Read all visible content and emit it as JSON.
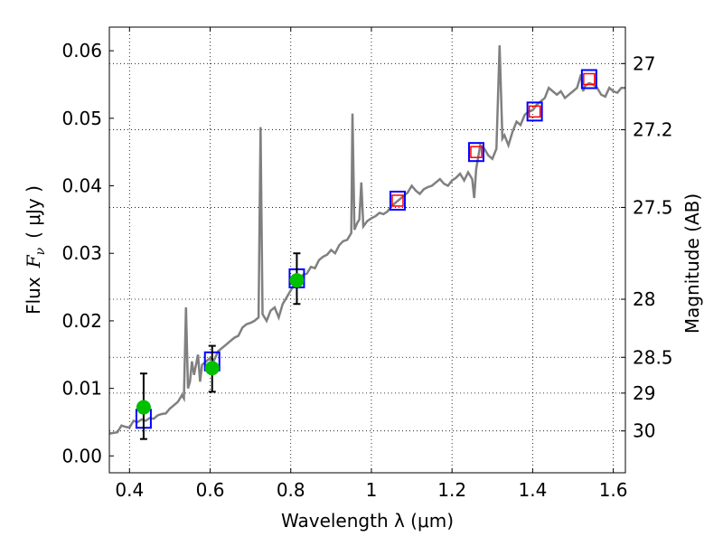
{
  "chart_data": {
    "type": "scatter",
    "xlabel": "Wavelength  λ (μm)",
    "ylabel_prefix": "Flux",
    "ylabel_symbol": "F",
    "ylabel_symbol_sub": "ν",
    "ylabel_suffix": "( μJy )",
    "ylabel_right": "Magnitude (AB)",
    "xlim": [
      0.35,
      1.63
    ],
    "ylim": [
      -0.0025,
      0.0635
    ],
    "x_ticks": [
      0.4,
      0.6,
      0.8,
      1.0,
      1.2,
      1.4,
      1.6
    ],
    "x_tick_labels": [
      "0.4",
      "0.6",
      "0.8",
      "1",
      "1.2",
      "1.4",
      "1.6"
    ],
    "y_ticks": [
      0.0,
      0.01,
      0.02,
      0.03,
      0.04,
      0.05,
      0.06
    ],
    "y_tick_labels": [
      "0.00",
      "0.01",
      "0.02",
      "0.03",
      "0.04",
      "0.05",
      "0.06"
    ],
    "right_ticks": [
      {
        "label": "27",
        "flux": 0.0581
      },
      {
        "label": "27.2",
        "flux": 0.0483
      },
      {
        "label": "27.5",
        "flux": 0.0368
      },
      {
        "label": "28",
        "flux": 0.0232
      },
      {
        "label": "28.5",
        "flux": 0.0146
      },
      {
        "label": "29",
        "flux": 0.0093
      },
      {
        "label": "30",
        "flux": 0.0037
      }
    ],
    "grid": true,
    "series": [
      {
        "kind": "spectrum",
        "color": "#808080",
        "points": [
          [
            0.35,
            0.0033
          ],
          [
            0.36,
            0.0034
          ],
          [
            0.37,
            0.0035
          ],
          [
            0.38,
            0.0045
          ],
          [
            0.39,
            0.0043
          ],
          [
            0.4,
            0.0042
          ],
          [
            0.41,
            0.0052
          ],
          [
            0.42,
            0.005
          ],
          [
            0.43,
            0.0054
          ],
          [
            0.44,
            0.0052
          ],
          [
            0.45,
            0.0056
          ],
          [
            0.46,
            0.0055
          ],
          [
            0.47,
            0.006
          ],
          [
            0.48,
            0.0062
          ],
          [
            0.49,
            0.0063
          ],
          [
            0.5,
            0.007
          ],
          [
            0.51,
            0.0075
          ],
          [
            0.52,
            0.008
          ],
          [
            0.53,
            0.009
          ],
          [
            0.535,
            0.0085
          ],
          [
            0.54,
            0.022
          ],
          [
            0.545,
            0.01
          ],
          [
            0.55,
            0.011
          ],
          [
            0.555,
            0.014
          ],
          [
            0.56,
            0.012
          ],
          [
            0.57,
            0.015
          ],
          [
            0.575,
            0.011
          ],
          [
            0.58,
            0.0135
          ],
          [
            0.59,
            0.014
          ],
          [
            0.6,
            0.0145
          ],
          [
            0.61,
            0.0142
          ],
          [
            0.62,
            0.0155
          ],
          [
            0.63,
            0.016
          ],
          [
            0.64,
            0.0165
          ],
          [
            0.65,
            0.017
          ],
          [
            0.66,
            0.0175
          ],
          [
            0.67,
            0.0178
          ],
          [
            0.68,
            0.019
          ],
          [
            0.69,
            0.0195
          ],
          [
            0.7,
            0.0197
          ],
          [
            0.71,
            0.02
          ],
          [
            0.72,
            0.0205
          ],
          [
            0.725,
            0.0487
          ],
          [
            0.73,
            0.021
          ],
          [
            0.74,
            0.02
          ],
          [
            0.75,
            0.0215
          ],
          [
            0.76,
            0.022
          ],
          [
            0.77,
            0.0205
          ],
          [
            0.78,
            0.0225
          ],
          [
            0.79,
            0.0235
          ],
          [
            0.8,
            0.0245
          ],
          [
            0.81,
            0.0255
          ],
          [
            0.82,
            0.026
          ],
          [
            0.83,
            0.0268
          ],
          [
            0.84,
            0.027
          ],
          [
            0.85,
            0.028
          ],
          [
            0.86,
            0.0278
          ],
          [
            0.87,
            0.029
          ],
          [
            0.88,
            0.0295
          ],
          [
            0.89,
            0.0298
          ],
          [
            0.9,
            0.0305
          ],
          [
            0.91,
            0.03
          ],
          [
            0.92,
            0.0312
          ],
          [
            0.93,
            0.0318
          ],
          [
            0.94,
            0.032
          ],
          [
            0.95,
            0.033
          ],
          [
            0.953,
            0.0507
          ],
          [
            0.958,
            0.0335
          ],
          [
            0.965,
            0.0345
          ],
          [
            0.97,
            0.035
          ],
          [
            0.975,
            0.0405
          ],
          [
            0.98,
            0.034
          ],
          [
            0.99,
            0.0348
          ],
          [
            1.0,
            0.0352
          ],
          [
            1.01,
            0.0355
          ],
          [
            1.02,
            0.036
          ],
          [
            1.03,
            0.0358
          ],
          [
            1.04,
            0.0362
          ],
          [
            1.05,
            0.037
          ],
          [
            1.06,
            0.0375
          ],
          [
            1.07,
            0.038
          ],
          [
            1.08,
            0.0385
          ],
          [
            1.09,
            0.039
          ],
          [
            1.1,
            0.04
          ],
          [
            1.11,
            0.0393
          ],
          [
            1.12,
            0.0388
          ],
          [
            1.13,
            0.0395
          ],
          [
            1.14,
            0.0398
          ],
          [
            1.15,
            0.04
          ],
          [
            1.16,
            0.0405
          ],
          [
            1.17,
            0.041
          ],
          [
            1.18,
            0.0403
          ],
          [
            1.19,
            0.04
          ],
          [
            1.2,
            0.0408
          ],
          [
            1.21,
            0.0412
          ],
          [
            1.22,
            0.0418
          ],
          [
            1.23,
            0.0408
          ],
          [
            1.24,
            0.042
          ],
          [
            1.25,
            0.041
          ],
          [
            1.255,
            0.0382
          ],
          [
            1.26,
            0.0425
          ],
          [
            1.27,
            0.046
          ],
          [
            1.28,
            0.0455
          ],
          [
            1.29,
            0.0445
          ],
          [
            1.3,
            0.044
          ],
          [
            1.31,
            0.0455
          ],
          [
            1.318,
            0.0608
          ],
          [
            1.325,
            0.047
          ],
          [
            1.33,
            0.0475
          ],
          [
            1.34,
            0.046
          ],
          [
            1.35,
            0.048
          ],
          [
            1.36,
            0.0495
          ],
          [
            1.37,
            0.049
          ],
          [
            1.38,
            0.0505
          ],
          [
            1.39,
            0.051
          ],
          [
            1.4,
            0.0512
          ],
          [
            1.41,
            0.052
          ],
          [
            1.42,
            0.0525
          ],
          [
            1.43,
            0.053
          ],
          [
            1.44,
            0.0545
          ],
          [
            1.45,
            0.054
          ],
          [
            1.46,
            0.0535
          ],
          [
            1.47,
            0.054
          ],
          [
            1.48,
            0.053
          ],
          [
            1.49,
            0.0535
          ],
          [
            1.5,
            0.054
          ],
          [
            1.51,
            0.0545
          ],
          [
            1.52,
            0.0565
          ],
          [
            1.525,
            0.054
          ],
          [
            1.53,
            0.0548
          ],
          [
            1.54,
            0.0552
          ],
          [
            1.55,
            0.055
          ],
          [
            1.56,
            0.0545
          ],
          [
            1.57,
            0.0535
          ],
          [
            1.58,
            0.0532
          ],
          [
            1.59,
            0.0545
          ],
          [
            1.6,
            0.054
          ],
          [
            1.61,
            0.0538
          ],
          [
            1.62,
            0.0545
          ],
          [
            1.63,
            0.0545
          ]
        ]
      },
      {
        "kind": "model-squares",
        "color": "#0000ff",
        "points": [
          [
            0.435,
            0.0055
          ],
          [
            0.605,
            0.014
          ],
          [
            0.815,
            0.0263
          ],
          [
            1.065,
            0.0378
          ],
          [
            1.26,
            0.045
          ],
          [
            1.405,
            0.051
          ],
          [
            1.54,
            0.0558
          ]
        ]
      },
      {
        "kind": "inner-squares",
        "color": "#ff0000",
        "points": [
          [
            1.065,
            0.0378
          ],
          [
            1.26,
            0.045
          ],
          [
            1.405,
            0.051
          ],
          [
            1.54,
            0.0558
          ]
        ]
      },
      {
        "kind": "observed",
        "color": "#00c000",
        "points": [
          {
            "x": 0.435,
            "y": 0.0072,
            "lo": 0.0025,
            "hi": 0.0122
          },
          {
            "x": 0.605,
            "y": 0.013,
            "lo": 0.0095,
            "hi": 0.0163
          },
          {
            "x": 0.815,
            "y": 0.026,
            "lo": 0.0225,
            "hi": 0.03
          }
        ]
      }
    ]
  }
}
